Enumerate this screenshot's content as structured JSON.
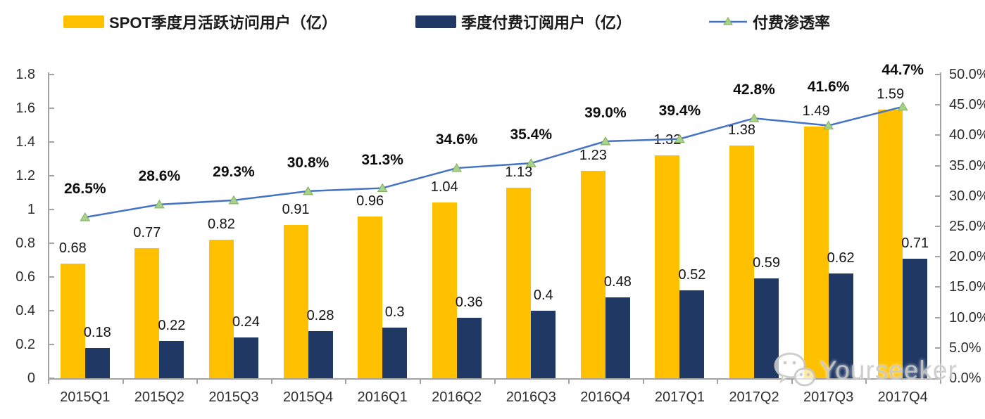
{
  "chart_data": {
    "type": "bar",
    "subtype": "grouped-bar-with-line-combo",
    "categories": [
      "2015Q1",
      "2015Q2",
      "2015Q3",
      "2015Q4",
      "2016Q1",
      "2016Q2",
      "2016Q3",
      "2016Q4",
      "2017Q1",
      "2017Q2",
      "2017Q3",
      "2017Q4"
    ],
    "series": [
      {
        "name": "SPOT季度月活跃访问用户（亿）",
        "type": "bar",
        "axis": "left",
        "color": "#FFC000",
        "values": [
          0.68,
          0.77,
          0.82,
          0.91,
          0.96,
          1.04,
          1.13,
          1.23,
          1.32,
          1.38,
          1.49,
          1.59
        ],
        "labels": [
          "0.68",
          "0.77",
          "0.82",
          "0.91",
          "0.96",
          "1.04",
          "1.13",
          "1.23",
          "1.32",
          "1.38",
          "1.49",
          "1.59"
        ]
      },
      {
        "name": "季度付费订阅用户（亿）",
        "type": "bar",
        "axis": "left",
        "color": "#1F3864",
        "values": [
          0.18,
          0.22,
          0.24,
          0.28,
          0.3,
          0.36,
          0.4,
          0.48,
          0.52,
          0.59,
          0.62,
          0.71
        ],
        "labels": [
          "0.18",
          "0.22",
          "0.24",
          "0.28",
          "0.3",
          "0.36",
          "0.4",
          "0.48",
          "0.52",
          "0.59",
          "0.62",
          "0.71"
        ]
      },
      {
        "name": "付费渗透率",
        "type": "line",
        "axis": "right",
        "color": "#4472C4",
        "marker": "triangle",
        "marker_fill": "#A9D18E",
        "marker_stroke": "#7FAE56",
        "values": [
          26.5,
          28.6,
          29.3,
          30.8,
          31.3,
          34.6,
          35.4,
          39.0,
          39.4,
          42.8,
          41.6,
          44.7
        ],
        "labels": [
          "26.5%",
          "28.6%",
          "29.3%",
          "30.8%",
          "31.3%",
          "34.6%",
          "35.4%",
          "39.0%",
          "39.4%",
          "42.8%",
          "41.6%",
          "44.7%"
        ]
      }
    ],
    "left_axis": {
      "min": 0,
      "max": 1.8,
      "step": 0.2,
      "tick_labels": [
        "0",
        "0.2",
        "0.4",
        "0.6",
        "0.8",
        "1",
        "1.2",
        "1.4",
        "1.6",
        "1.8"
      ]
    },
    "right_axis": {
      "min": 0,
      "max": 50,
      "step": 5,
      "tick_labels": [
        "0.0%",
        "5.0%",
        "10.0%",
        "15.0%",
        "20.0%",
        "25.0%",
        "30.0%",
        "35.0%",
        "40.0%",
        "45.0%",
        "50.0%"
      ]
    },
    "grid": false,
    "legend_position": "top"
  },
  "watermark": {
    "text": "Yourseeker",
    "icon": "wechat-icon"
  }
}
